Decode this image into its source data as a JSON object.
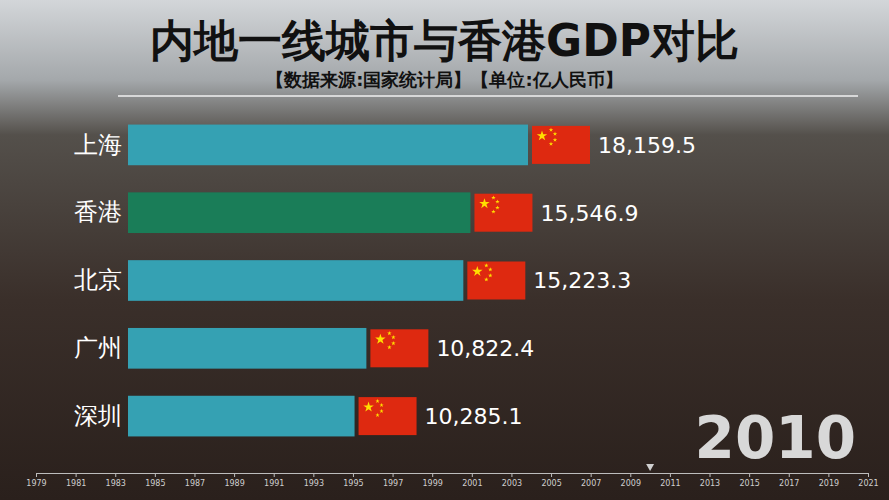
{
  "chart_data": {
    "type": "bar",
    "orientation": "horizontal",
    "title": "内地一线城市与香港GDP对比",
    "subtitle": "【数据来源:国家统计局】【单位:亿人民币】",
    "categories": [
      "上海",
      "香港",
      "北京",
      "广州",
      "深圳"
    ],
    "values": [
      18159.5,
      15546.9,
      15223.3,
      10822.4,
      10285.1
    ],
    "value_labels": [
      "18,159.5",
      "15,546.9",
      "15,223.3",
      "10,822.4",
      "10,285.1"
    ],
    "colors": [
      "#35a1b3",
      "#1a7d58",
      "#35a1b3",
      "#35a1b3",
      "#35a1b3"
    ],
    "data_labels": true,
    "xlim": [
      0,
      18159.5
    ],
    "timeline": {
      "xlim": [
        1979,
        2021
      ],
      "xticks": [
        1979,
        1981,
        1983,
        1985,
        1987,
        1989,
        1991,
        1993,
        1995,
        1997,
        1999,
        2001,
        2003,
        2005,
        2007,
        2009,
        2011,
        2013,
        2015,
        2017,
        2019,
        2021
      ],
      "current": 2010
    }
  }
}
